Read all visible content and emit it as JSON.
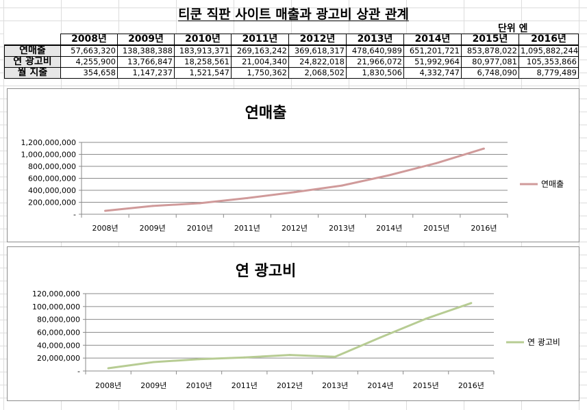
{
  "title": "티쿤 직판 사이트 매출과 광고비 상관 관계",
  "unit_label": "단위 엔",
  "table": {
    "years": [
      "2008년",
      "2009년",
      "2010년",
      "2011년",
      "2012년",
      "2013년",
      "2014년",
      "2015년",
      "2016년"
    ],
    "rows": [
      {
        "label": "연매출",
        "values": [
          "57,663,320",
          "138,388,388",
          "183,913,371",
          "269,163,242",
          "369,618,317",
          "478,640,989",
          "651,201,721",
          "853,878,022",
          "1,095,882,244"
        ]
      },
      {
        "label": "연 광고비",
        "values": [
          "4,255,900",
          "13,766,847",
          "18,258,561",
          "21,004,340",
          "24,822,018",
          "21,966,072",
          "51,992,964",
          "80,977,081",
          "105,353,866"
        ]
      },
      {
        "label": "월 지출",
        "values": [
          "354,658",
          "1,147,237",
          "1,521,547",
          "1,750,362",
          "2,068,502",
          "1,830,506",
          "4,332,747",
          "6,748,090",
          "8,779,489"
        ]
      }
    ]
  },
  "chart_data": [
    {
      "type": "line",
      "title": "연매출",
      "categories": [
        "2008년",
        "2009년",
        "2010년",
        "2011년",
        "2012년",
        "2013년",
        "2014년",
        "2015년",
        "2016년"
      ],
      "series": [
        {
          "name": "연매출",
          "values": [
            57663320,
            138388388,
            183913371,
            269163242,
            369618317,
            478640989,
            651201721,
            853878022,
            1095882244
          ]
        }
      ],
      "ylim": [
        0,
        1200000000
      ],
      "yticks": [
        0,
        200000000,
        400000000,
        600000000,
        800000000,
        1000000000,
        1200000000
      ],
      "ytick_labels": [
        "-",
        "200,000,000",
        "400,000,000",
        "600,000,000",
        "800,000,000",
        "1,000,000,000",
        "1,200,000,000"
      ],
      "legend": "right",
      "grid": true,
      "color": "#d09a9a"
    },
    {
      "type": "line",
      "title": "연 광고비",
      "categories": [
        "2008년",
        "2009년",
        "2010년",
        "2011년",
        "2012년",
        "2013년",
        "2014년",
        "2015년",
        "2016년"
      ],
      "series": [
        {
          "name": "연 광고비",
          "values": [
            4255900,
            13766847,
            18258561,
            21004340,
            24822018,
            21966072,
            51992964,
            80977081,
            105353866
          ]
        }
      ],
      "ylim": [
        0,
        120000000
      ],
      "yticks": [
        0,
        20000000,
        40000000,
        60000000,
        80000000,
        100000000,
        120000000
      ],
      "ytick_labels": [
        "-",
        "20,000,000",
        "40,000,000",
        "60,000,000",
        "80,000,000",
        "100,000,000",
        "120,000,000"
      ],
      "legend": "right",
      "grid": true,
      "color": "#b7cc93"
    }
  ]
}
